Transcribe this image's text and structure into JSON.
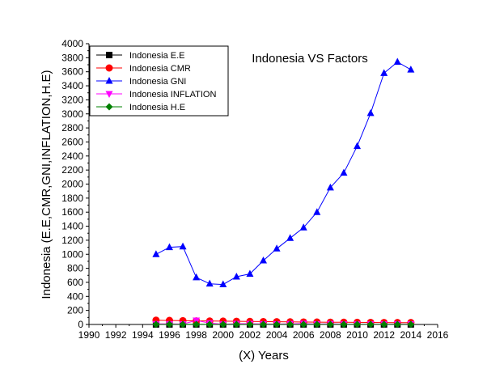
{
  "chart_data": {
    "type": "line",
    "title": "Indonesia VS Factors",
    "xlabel": "(X) Years",
    "ylabel": "Indonesia (E.E,CMR,GNI,INFLATION,H.E)",
    "xlim": [
      1990,
      2016
    ],
    "ylim": [
      0,
      4000
    ],
    "xticks": [
      1990,
      1992,
      1994,
      1996,
      1998,
      2000,
      2002,
      2004,
      2006,
      2008,
      2010,
      2012,
      2014,
      2016
    ],
    "yticks": [
      0,
      200,
      400,
      600,
      800,
      1000,
      1200,
      1400,
      1600,
      1800,
      2000,
      2200,
      2400,
      2600,
      2800,
      3000,
      3200,
      3400,
      3600,
      3800,
      4000
    ],
    "grid": false,
    "legend_position": "top-left",
    "x": [
      1995,
      1996,
      1997,
      1998,
      1999,
      2000,
      2001,
      2002,
      2003,
      2004,
      2005,
      2006,
      2007,
      2008,
      2009,
      2010,
      2011,
      2012,
      2013,
      2014
    ],
    "series": [
      {
        "name": "Indonesia  E.E",
        "color": "#000000",
        "marker": "square",
        "values": [
          1,
          1,
          1,
          1,
          1,
          1,
          1,
          1,
          1,
          1,
          1,
          1,
          1,
          1,
          1,
          1,
          1,
          1,
          1,
          1
        ]
      },
      {
        "name": "Indonesia CMR",
        "color": "#ff0000",
        "marker": "circle",
        "values": [
          60,
          57,
          54,
          51,
          49,
          47,
          45,
          43,
          41,
          39,
          37,
          35,
          34,
          32,
          31,
          30,
          29,
          28,
          27,
          27
        ]
      },
      {
        "name": "Indonesia GNI",
        "color": "#0000ff",
        "marker": "triangle-up",
        "values": [
          1000,
          1100,
          1110,
          670,
          580,
          570,
          680,
          720,
          910,
          1080,
          1230,
          1380,
          1600,
          1950,
          2160,
          2540,
          3010,
          3580,
          3740,
          3630
        ]
      },
      {
        "name": "Indonesia INFLATION",
        "color": "#ff00ff",
        "marker": "triangle-down",
        "values": [
          9,
          8,
          6,
          58,
          20,
          4,
          11,
          12,
          7,
          6,
          10,
          13,
          6,
          10,
          5,
          5,
          5,
          4,
          6,
          6
        ]
      },
      {
        "name": "Indonesia H.E",
        "color": "#008000",
        "marker": "diamond",
        "values": [
          1,
          1,
          1,
          1,
          1,
          1,
          1,
          1,
          1,
          1,
          1,
          1,
          1,
          1,
          1,
          1,
          1,
          1,
          1,
          1
        ]
      }
    ]
  }
}
